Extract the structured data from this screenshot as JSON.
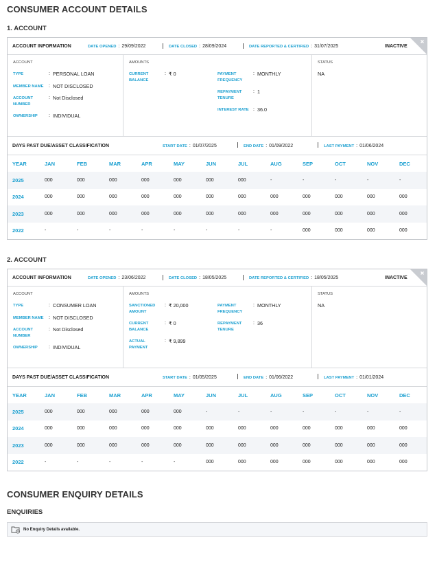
{
  "title": "CONSUMER ACCOUNT DETAILS",
  "accounts": [
    {
      "heading": "1. ACCOUNT",
      "info_label": "ACCOUNT INFORMATION",
      "dates": [
        {
          "label": "DATE OPENED",
          "value": "29/09/2022"
        },
        {
          "label": "DATE CLOSED",
          "value": "28/09/2024"
        },
        {
          "label": "DATE REPORTED & CERTIFIED",
          "value": "31/07/2025"
        }
      ],
      "status_badge": "INACTIVE",
      "account_section": {
        "label": "ACCOUNT",
        "fields": [
          {
            "label": "TYPE",
            "value": "PERSONAL LOAN"
          },
          {
            "label": "MEMBER NAME",
            "value": "NOT DISCLOSED"
          },
          {
            "label": "ACCOUNT NUMBER",
            "value": "Not Disclosed"
          },
          {
            "label": "OWNERSHIP",
            "value": "INDIVIDUAL"
          }
        ]
      },
      "amounts_section": {
        "label": "AMOUNTS",
        "left": [
          {
            "label": "CURRENT BALANCE",
            "value": "₹ 0"
          }
        ],
        "right": [
          {
            "label": "PAYMENT FREQUENCY",
            "value": "MONTHLY"
          },
          {
            "label": "REPAYMENT TENURE",
            "value": "1"
          },
          {
            "label": "INTEREST RATE",
            "value": "36.0"
          }
        ]
      },
      "status_section": {
        "label": "STATUS",
        "value": "NA"
      },
      "dpd": {
        "label": "DAYS PAST DUE/ASSET CLASSIFICATION",
        "dates": [
          {
            "label": "START DATE",
            "value": "01/07/2025"
          },
          {
            "label": "END DATE",
            "value": "01/09/2022"
          },
          {
            "label": "LAST PAYMENT",
            "value": "01/06/2024"
          }
        ],
        "header": [
          "YEAR",
          "JAN",
          "FEB",
          "MAR",
          "APR",
          "MAY",
          "JUN",
          "JUL",
          "AUG",
          "SEP",
          "OCT",
          "NOV",
          "DEC"
        ],
        "rows": [
          [
            "2025",
            "000",
            "000",
            "000",
            "000",
            "000",
            "000",
            "000",
            "-",
            "-",
            "-",
            "-",
            "-"
          ],
          [
            "2024",
            "000",
            "000",
            "000",
            "000",
            "000",
            "000",
            "000",
            "000",
            "000",
            "000",
            "000",
            "000"
          ],
          [
            "2023",
            "000",
            "000",
            "000",
            "000",
            "000",
            "000",
            "000",
            "000",
            "000",
            "000",
            "000",
            "000"
          ],
          [
            "2022",
            "-",
            "-",
            "-",
            "-",
            "-",
            "-",
            "-",
            "-",
            "000",
            "000",
            "000",
            "000"
          ]
        ]
      }
    },
    {
      "heading": "2. ACCOUNT",
      "info_label": "ACCOUNT INFORMATION",
      "dates": [
        {
          "label": "DATE OPENED",
          "value": "23/06/2022"
        },
        {
          "label": "DATE CLOSED",
          "value": "18/05/2025"
        },
        {
          "label": "DATE REPORTED & CERTIFIED",
          "value": "18/05/2025"
        }
      ],
      "status_badge": "INACTIVE",
      "account_section": {
        "label": "ACCOUNT",
        "fields": [
          {
            "label": "TYPE",
            "value": "CONSUMER LOAN"
          },
          {
            "label": "MEMBER NAME",
            "value": "NOT DISCLOSED"
          },
          {
            "label": "ACCOUNT NUMBER",
            "value": "Not Disclosed"
          },
          {
            "label": "OWNERSHIP",
            "value": "INDIVIDUAL"
          }
        ]
      },
      "amounts_section": {
        "label": "AMOUNTS",
        "left": [
          {
            "label": "SANCTIONED AMOUNT",
            "value": "₹ 20,000"
          },
          {
            "label": "CURRENT BALANCE",
            "value": "₹ 0"
          },
          {
            "label": "ACTUAL PAYMENT",
            "value": "₹ 9,899"
          }
        ],
        "right": [
          {
            "label": "PAYMENT FREQUENCY",
            "value": "MONTHLY"
          },
          {
            "label": "REPAYMENT TENURE",
            "value": "36"
          }
        ]
      },
      "status_section": {
        "label": "STATUS",
        "value": "NA"
      },
      "dpd": {
        "label": "DAYS PAST DUE/ASSET CLASSIFICATION",
        "dates": [
          {
            "label": "START DATE",
            "value": "01/05/2025"
          },
          {
            "label": "END DATE",
            "value": "01/06/2022"
          },
          {
            "label": "LAST PAYMENT",
            "value": "01/01/2024"
          }
        ],
        "header": [
          "YEAR",
          "JAN",
          "FEB",
          "MAR",
          "APR",
          "MAY",
          "JUN",
          "JUL",
          "AUG",
          "SEP",
          "OCT",
          "NOV",
          "DEC"
        ],
        "rows": [
          [
            "2025",
            "000",
            "000",
            "000",
            "000",
            "000",
            "-",
            "-",
            "-",
            "-",
            "-",
            "-",
            "-"
          ],
          [
            "2024",
            "000",
            "000",
            "000",
            "000",
            "000",
            "000",
            "000",
            "000",
            "000",
            "000",
            "000",
            "000"
          ],
          [
            "2023",
            "000",
            "000",
            "000",
            "000",
            "000",
            "000",
            "000",
            "000",
            "000",
            "000",
            "000",
            "000"
          ],
          [
            "2022",
            "-",
            "-",
            "-",
            "-",
            "-",
            "000",
            "000",
            "000",
            "000",
            "000",
            "000",
            "000"
          ]
        ]
      }
    }
  ],
  "enquiry": {
    "title": "CONSUMER ENQUIRY DETAILS",
    "subtitle": "ENQUIRIES",
    "message": "No Enquiry Details available."
  }
}
